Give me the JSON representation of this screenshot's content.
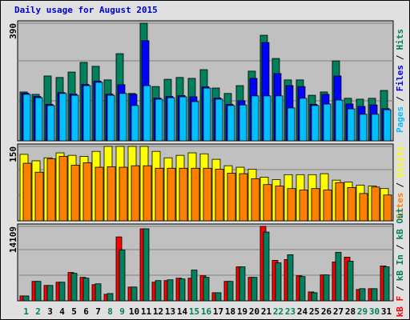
{
  "title": "Daily usage for August 2015",
  "chart_data": [
    {
      "type": "bar",
      "ylim": [
        0,
        390
      ],
      "yticks": [
        390
      ],
      "ylabel_parts": [
        {
          "text": "Pages",
          "color": "#00c0ff"
        },
        {
          "text": "/",
          "color": "#000000"
        },
        {
          "text": "Files",
          "color": "#0000ff"
        },
        {
          "text": "/",
          "color": "#000000"
        },
        {
          "text": "Hits",
          "color": "#00805c"
        }
      ],
      "series": [
        {
          "color": "#00805c",
          "values": [
            162,
            154,
            215,
            210,
            228,
            260,
            247,
            202,
            289,
            157,
            390,
            180,
            204,
            210,
            207,
            236,
            175,
            157,
            183,
            231,
            350,
            273,
            202,
            202,
            151,
            162,
            265,
            141,
            138,
            141,
            167
          ]
        },
        {
          "color": "#0000ff",
          "values": [
            158,
            147,
            121,
            160,
            155,
            187,
            198,
            155,
            186,
            154,
            332,
            142,
            147,
            150,
            146,
            179,
            142,
            121,
            133,
            207,
            326,
            223,
            183,
            180,
            121,
            154,
            215,
            122,
            114,
            119,
            107
          ]
        },
        {
          "color": "#00c0ff",
          "values": [
            154,
            143,
            117,
            157,
            151,
            183,
            194,
            151,
            157,
            117,
            183,
            138,
            143,
            146,
            130,
            175,
            138,
            117,
            119,
            149,
            149,
            149,
            109,
            141,
            117,
            122,
            135,
            106,
            88,
            88,
            103
          ]
        }
      ]
    },
    {
      "type": "bar",
      "ylim": [
        0,
        150
      ],
      "yticks": [
        150
      ],
      "ylabel_parts": [
        {
          "text": "Sites",
          "color": "#ff8000"
        },
        {
          "text": "/",
          "color": "#000000"
        },
        {
          "text": "Visits",
          "color": "#ffff00"
        }
      ],
      "series": [
        {
          "color": "#ffff00",
          "values": [
            134,
            121,
            127,
            137,
            132,
            130,
            140,
            150,
            150,
            150,
            150,
            140,
            127,
            132,
            137,
            135,
            124,
            111,
            108,
            104,
            88,
            83,
            93,
            93,
            93,
            95,
            82,
            78,
            72,
            70,
            65
          ]
        },
        {
          "color": "#ff8000",
          "values": [
            116,
            98,
            125,
            130,
            112,
            117,
            108,
            109,
            108,
            111,
            111,
            106,
            106,
            106,
            106,
            106,
            104,
            96,
            95,
            85,
            73,
            70,
            65,
            62,
            65,
            62,
            77,
            67,
            55,
            68,
            52
          ]
        }
      ]
    },
    {
      "type": "bar",
      "ylim": [
        0,
        14109
      ],
      "yticks": [
        14109
      ],
      "ylabel_parts": [
        {
          "text": "kB F",
          "color": "#ff0000"
        },
        {
          "text": "/",
          "color": "#000000"
        },
        {
          "text": "kB In",
          "color": "#00805c"
        },
        {
          "text": "/",
          "color": "#000000"
        },
        {
          "text": "kB Out",
          "color": "#00805c"
        }
      ],
      "series": [
        {
          "color": "#ff0000",
          "values": [
            920,
            3682,
            2915,
            3528,
            5369,
            4449,
            3068,
            1227,
            12119,
            2608,
            13653,
            3528,
            3835,
            4295,
            4295,
            4755,
            1534,
            3682,
            6443,
            4449,
            14109,
            7670,
            7824,
            4755,
            1687,
            4909,
            7364,
            8284,
            2148,
            2301,
            6597
          ]
        },
        {
          "color": "#00805c",
          "values": [
            920,
            3682,
            2915,
            3528,
            5216,
            4295,
            3221,
            1381,
            9664,
            2608,
            13653,
            3835,
            3988,
            4142,
            5829,
            4449,
            1534,
            3682,
            6443,
            4449,
            13039,
            7210,
            8744,
            4602,
            1534,
            4909,
            9204,
            7517,
            2301,
            2301,
            6443
          ]
        }
      ],
      "categories": [
        "1",
        "2",
        "3",
        "4",
        "5",
        "6",
        "7",
        "8",
        "9",
        "10",
        "11",
        "12",
        "13",
        "14",
        "15",
        "16",
        "17",
        "18",
        "19",
        "20",
        "21",
        "22",
        "23",
        "24",
        "25",
        "26",
        "27",
        "28",
        "29",
        "30",
        "31"
      ],
      "weekend": [
        0,
        1,
        7,
        8,
        14,
        15,
        21,
        22,
        28,
        29
      ],
      "weekend_color": "#00805c"
    }
  ]
}
